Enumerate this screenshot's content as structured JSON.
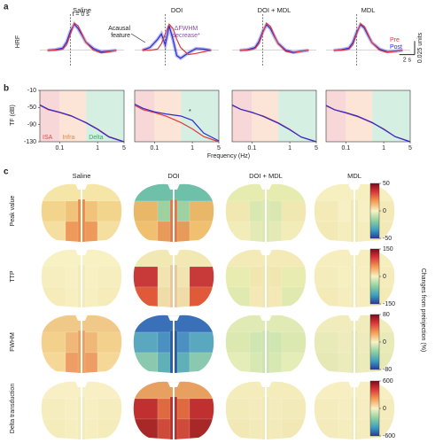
{
  "panel_a": {
    "label": "a",
    "columns": [
      "Saline",
      "DOI",
      "DOI + MDL",
      "MDL"
    ],
    "y_label": "HRF",
    "t0_label": "t = 0 s",
    "annotation_acausal": [
      "Acausal",
      "feature"
    ],
    "annotation_fwhm": [
      "ΔFWHM",
      "decrease*"
    ],
    "legend": [
      {
        "name": "Pre",
        "color": "#e03a3a"
      },
      {
        "name": "Post",
        "color": "#2b2bd0"
      }
    ],
    "scale_bar": {
      "y": {
        "value": 0.025,
        "label": "0.025 units"
      },
      "x": {
        "value": 2,
        "label": "2 s"
      }
    },
    "x": [
      -3,
      -2,
      -1,
      -0.5,
      0,
      0.5,
      1,
      1.5,
      2,
      3,
      4,
      5,
      6
    ],
    "xlim": [
      -4,
      7
    ],
    "ylim": [
      -0.03,
      0.06
    ],
    "curves": [
      {
        "pre": [
          0,
          0,
          0.002,
          0.01,
          0.03,
          0.05,
          0.045,
          0.03,
          0.015,
          0,
          -0.005,
          -0.003,
          0
        ],
        "post": [
          0,
          0.001,
          0.004,
          0.015,
          0.035,
          0.048,
          0.04,
          0.028,
          0.015,
          0.003,
          -0.003,
          -0.002,
          0
        ]
      },
      {
        "pre": [
          0,
          0,
          0.002,
          0.012,
          0.03,
          0.048,
          0.04,
          0.02,
          0.005,
          -0.008,
          -0.006,
          -0.003,
          0
        ],
        "post": [
          0,
          0.005,
          0.02,
          0.03,
          0.01,
          0.045,
          0.02,
          -0.01,
          -0.015,
          -0.005,
          0.003,
          0.002,
          0
        ]
      },
      {
        "pre": [
          0,
          0,
          0.003,
          0.012,
          0.032,
          0.05,
          0.044,
          0.028,
          0.012,
          -0.002,
          -0.005,
          -0.002,
          0
        ],
        "post": [
          0,
          0.001,
          0.005,
          0.016,
          0.034,
          0.047,
          0.04,
          0.026,
          0.013,
          0,
          -0.004,
          -0.002,
          0
        ]
      },
      {
        "pre": [
          0,
          0,
          0.002,
          0.01,
          0.03,
          0.049,
          0.044,
          0.029,
          0.014,
          0,
          -0.004,
          -0.002,
          0
        ],
        "post": [
          0,
          0.001,
          0.004,
          0.014,
          0.033,
          0.047,
          0.041,
          0.027,
          0.014,
          0.002,
          -0.003,
          -0.002,
          0
        ]
      }
    ]
  },
  "panel_b": {
    "label": "b",
    "y_label": "TF (dB)",
    "x_label": "Frequency (Hz)",
    "asterisk": "*",
    "ylim": [
      -130,
      -10
    ],
    "yticks": [
      -10,
      -50,
      -90,
      -130
    ],
    "xlim": [
      0.03,
      5
    ],
    "xticks": [
      0.1,
      1,
      5
    ],
    "log_x": true,
    "bands": [
      {
        "label": "ISA",
        "range": [
          0.03,
          0.1
        ],
        "color": "#f6c9cc",
        "text_color": "#d84a4a"
      },
      {
        "label": "Infra",
        "range": [
          0.1,
          0.5
        ],
        "color": "#fbdcc8",
        "text_color": "#e8864a"
      },
      {
        "label": "Delta",
        "range": [
          0.5,
          5
        ],
        "color": "#c7ead8",
        "text_color": "#3aa86a"
      }
    ],
    "x": [
      0.03,
      0.05,
      0.1,
      0.2,
      0.5,
      1,
      2,
      5
    ],
    "curves": [
      {
        "pre": [
          -45,
          -55,
          -62,
          -70,
          -85,
          -100,
          -118,
          -130
        ],
        "post": [
          -44,
          -54,
          -61,
          -69,
          -86,
          -101,
          -119,
          -130
        ]
      },
      {
        "pre": [
          -45,
          -55,
          -62,
          -70,
          -85,
          -100,
          -118,
          -130
        ],
        "post": [
          -42,
          -52,
          -60,
          -65,
          -70,
          -80,
          -110,
          -128
        ]
      },
      {
        "pre": [
          -45,
          -54,
          -62,
          -70,
          -86,
          -101,
          -119,
          -130
        ],
        "post": [
          -44,
          -54,
          -61,
          -71,
          -87,
          -102,
          -119,
          -130
        ]
      },
      {
        "pre": [
          -46,
          -55,
          -63,
          -71,
          -86,
          -100,
          -118,
          -130
        ],
        "post": [
          -45,
          -55,
          -62,
          -70,
          -85,
          -101,
          -118,
          -130
        ]
      }
    ]
  },
  "panel_c": {
    "label": "c",
    "columns": [
      "Saline",
      "DOI",
      "DOI + MDL",
      "MDL"
    ],
    "rows": [
      "Peak value",
      "TTP",
      "FWHM",
      "Delta transduction"
    ],
    "colorbar_label": "Changes from preinjection (%)",
    "colorbars": [
      {
        "lim": [
          -50,
          50
        ],
        "ticks": [
          50,
          0,
          -50
        ]
      },
      {
        "lim": [
          -150,
          150
        ],
        "ticks": [
          150,
          0,
          -150
        ]
      },
      {
        "lim": [
          -80,
          80
        ],
        "ticks": [
          80,
          0,
          -80
        ]
      },
      {
        "lim": [
          -600,
          600
        ],
        "ticks": [
          600,
          0,
          -600
        ]
      }
    ],
    "maps": [
      [
        [
          "#f5e6a8",
          "#f3d48c",
          "#f0c27a",
          "#f5dfa0",
          "#ee9a5a",
          "#ec8a4a"
        ],
        [
          "#6fc0a8",
          "#e8b868",
          "#9fd0a0",
          "#f0c070",
          "#e89a5a",
          "#e07a4a"
        ],
        [
          "#e6ecb0",
          "#f0e8b0",
          "#d8e8b0",
          "#f2ecb8",
          "#e4eab6",
          "#dce8b4"
        ],
        [
          "#f6efc0",
          "#f4eab8",
          "#f6f0c4",
          "#f3e9b6",
          "#f5eebc",
          "#f2e8b4"
        ]
      ],
      [
        [
          "#f8f1c4",
          "#f6eebe",
          "#f8f0c2",
          "#f5ecba",
          "#f7efc0",
          "#f4eab8"
        ],
        [
          "#f1e8b4",
          "#c83a3a",
          "#f2e4b0",
          "#e05a3a",
          "#f0dca8",
          "#e8c89a"
        ],
        [
          "#f4eab8",
          "#e8ecb0",
          "#f2e6b0",
          "#e0eab0",
          "#f4e8b6",
          "#f0e6b4"
        ],
        [
          "#f7eec0",
          "#f5ecbc",
          "#f6efc0",
          "#f3eab8",
          "#f6edbe",
          "#f4ebba"
        ]
      ],
      [
        [
          "#f0c888",
          "#f3d08c",
          "#f0b878",
          "#f5d898",
          "#ee9e64",
          "#eda064"
        ],
        [
          "#3a70b8",
          "#5aa8c0",
          "#4a90c0",
          "#8ac8b0",
          "#60b0b8",
          "#2a5aa8"
        ],
        [
          "#e0eab4",
          "#dbe8b0",
          "#d0e6b2",
          "#e4ecb8",
          "#d8e8b2",
          "#cce2b0"
        ],
        [
          "#f0ecbc",
          "#e8eab8",
          "#eeecbc",
          "#e6e8b6",
          "#ecebba",
          "#e4e8b6"
        ]
      ],
      [
        [
          "#f8f0c4",
          "#f6edbe",
          "#f7efc2",
          "#f5ecbc",
          "#f7eec0",
          "#f4ebba"
        ],
        [
          "#e8a060",
          "#c03030",
          "#e06a40",
          "#a82828",
          "#d04a3a",
          "#b83030"
        ],
        [
          "#f5ecbc",
          "#f2eab8",
          "#f4ebbc",
          "#f1e8b6",
          "#f3eaba",
          "#f0e8b6"
        ],
        [
          "#f7efc2",
          "#f5ecbe",
          "#f6eec0",
          "#f4ebbc",
          "#f6edbe",
          "#f3eaba"
        ]
      ]
    ]
  }
}
